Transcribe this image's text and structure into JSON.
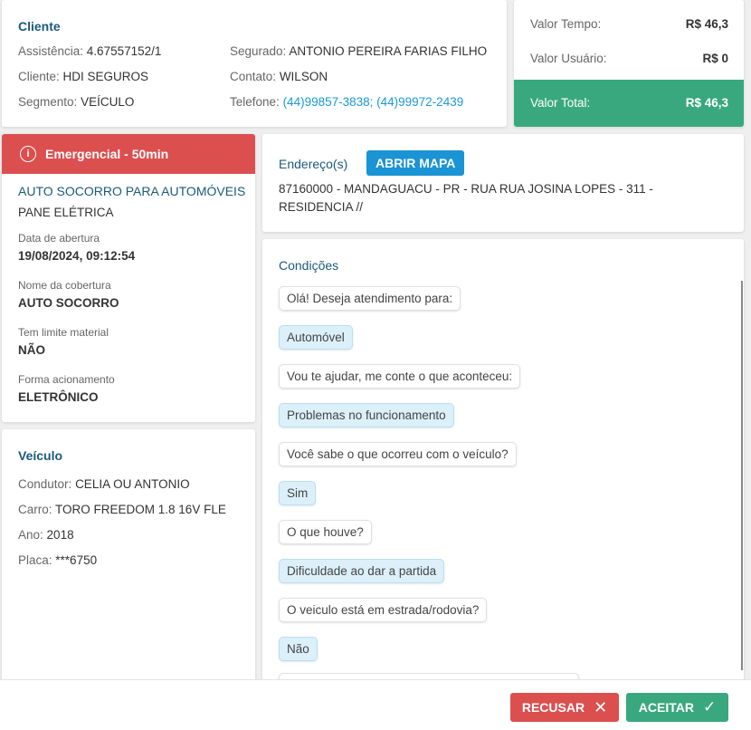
{
  "cliente": {
    "title": "Cliente",
    "assistencia_label": "Assistência:",
    "assistencia": "4.67557152/1",
    "cliente_label": "Cliente:",
    "cliente": "HDI SEGUROS",
    "segmento_label": "Segmento:",
    "segmento": "VEÍCULO",
    "segurado_label": "Segurado:",
    "segurado": "ANTONIO PEREIRA FARIAS FILHO",
    "contato_label": "Contato:",
    "contato": "WILSON",
    "telefone_label": "Telefone:",
    "telefone": "(44)99857-3838; (44)99972-2439"
  },
  "valores": {
    "tempo_label": "Valor Tempo:",
    "tempo": "R$ 46,3",
    "usuario_label": "Valor Usuário:",
    "usuario": "R$ 0",
    "total_label": "Valor Total:",
    "total": "R$ 46,3",
    "total_color": "#3aa87e"
  },
  "servico": {
    "badge": "Emergencial - 50min",
    "badge_color": "#dc4f4f",
    "nome": "AUTO SOCORRO PARA AUTOMÓVEIS",
    "problema": "PANE ELÉTRICA",
    "abertura_label": "Data de abertura",
    "abertura": "19/08/2024, 09:12:54",
    "cobertura_label": "Nome da cobertura",
    "cobertura": "AUTO SOCORRO",
    "limite_label": "Tem limite material",
    "limite": "NÃO",
    "acionamento_label": "Forma acionamento",
    "acionamento": "ELETRÔNICO"
  },
  "veiculo": {
    "title": "Veículo",
    "condutor_label": "Condutor:",
    "condutor": "CELIA OU ANTONIO",
    "carro_label": "Carro:",
    "carro": "TORO FREEDOM 1.8 16V FLE",
    "ano_label": "Ano:",
    "ano": "2018",
    "placa_label": "Placa:",
    "placa": "***6750"
  },
  "endereco": {
    "title": "Endereço(s)",
    "map_button": "ABRIR MAPA",
    "line1": "87160000 - MANDAGUACU - PR - RUA RUA JOSINA LOPES - 311 -",
    "line2": "RESIDENCIA //"
  },
  "condicoes": {
    "title": "Condições",
    "messages": [
      {
        "from": "bot",
        "text": "Olá! Deseja atendimento para:"
      },
      {
        "from": "user",
        "text": "Automóvel"
      },
      {
        "from": "bot",
        "text": "Vou te ajudar, me conte o que aconteceu:"
      },
      {
        "from": "user",
        "text": "Problemas no funcionamento"
      },
      {
        "from": "bot",
        "text": "Você sabe o que ocorreu com o veículo?"
      },
      {
        "from": "user",
        "text": "Sim"
      },
      {
        "from": "bot",
        "text": "O que houve?"
      },
      {
        "from": "user",
        "text": "Dificuldade ao dar a partida"
      },
      {
        "from": "bot",
        "text": "O veiculo está em estrada/rodovia?"
      },
      {
        "from": "user",
        "text": "Não"
      }
    ]
  },
  "footer": {
    "recusar": "RECUSAR",
    "aceitar": "ACEITAR",
    "recusar_color": "#dc4f4f",
    "aceitar_color": "#3aa87e"
  }
}
